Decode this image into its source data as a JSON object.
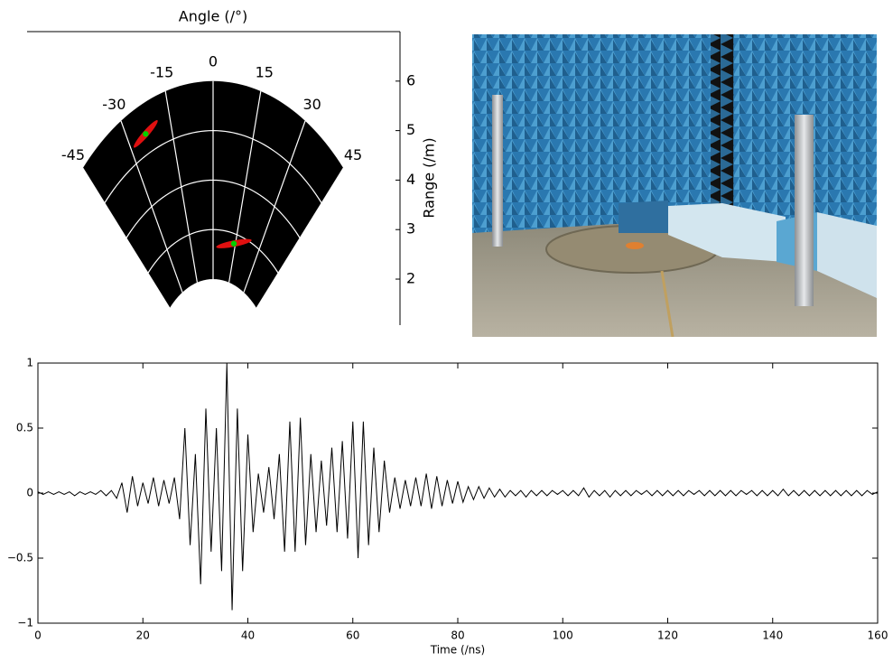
{
  "chart_data": [
    {
      "type": "polar-sector",
      "title": "Angle (/°)",
      "ylabel": "Range (/m)",
      "thetalim": [
        -45,
        45
      ],
      "thetaticks": [
        -45,
        -30,
        -15,
        0,
        15,
        30,
        45
      ],
      "rlim": [
        2,
        6
      ],
      "rgrid": [
        3,
        4,
        5
      ],
      "ylim": [
        1.07,
        7
      ],
      "yticks": [
        2,
        3,
        4,
        5,
        6
      ],
      "theta": [
        -24,
        14
      ],
      "r": [
        5.4,
        2.8
      ],
      "color": "#00d000",
      "glow_color": "#e01010"
    },
    {
      "type": "line",
      "xlabel": "Time (/ns)",
      "color": "#000000",
      "xlim": [
        0,
        160
      ],
      "xticks": [
        0,
        20,
        40,
        60,
        80,
        100,
        120,
        140,
        160
      ],
      "ylim": [
        -1,
        1
      ],
      "yticks": [
        {
          "value": -1,
          "label": "−1"
        },
        {
          "value": -0.5,
          "label": "−0.5"
        },
        0,
        0.5,
        1
      ],
      "x": [
        0,
        1,
        2,
        3,
        4,
        5,
        6,
        7,
        8,
        9,
        10,
        11,
        12,
        13,
        14,
        15,
        16,
        17,
        18,
        19,
        20,
        21,
        22,
        23,
        24,
        25,
        26,
        27,
        28,
        29,
        30,
        31,
        32,
        33,
        34,
        35,
        36,
        37,
        38,
        39,
        40,
        41,
        42,
        43,
        44,
        45,
        46,
        47,
        48,
        49,
        50,
        51,
        52,
        53,
        54,
        55,
        56,
        57,
        58,
        59,
        60,
        61,
        62,
        63,
        64,
        65,
        66,
        67,
        68,
        69,
        70,
        71,
        72,
        73,
        74,
        75,
        76,
        77,
        78,
        79,
        80,
        81,
        82,
        83,
        84,
        85,
        86,
        87,
        88,
        89,
        90,
        91,
        92,
        93,
        94,
        95,
        96,
        97,
        98,
        99,
        100,
        101,
        102,
        103,
        104,
        105,
        106,
        107,
        108,
        109,
        110,
        111,
        112,
        113,
        114,
        115,
        116,
        117,
        118,
        119,
        120,
        121,
        122,
        123,
        124,
        125,
        126,
        127,
        128,
        129,
        130,
        131,
        132,
        133,
        134,
        135,
        136,
        137,
        138,
        139,
        140,
        141,
        142,
        143,
        144,
        145,
        146,
        147,
        148,
        149,
        150,
        151,
        152,
        153,
        154,
        155,
        156,
        157,
        158,
        159,
        160
      ],
      "values": [
        0.01,
        -0.01,
        0.01,
        -0.01,
        0.01,
        -0.01,
        0.01,
        -0.02,
        0.01,
        -0.01,
        0.01,
        -0.01,
        0.02,
        -0.02,
        0.02,
        -0.04,
        0.08,
        -0.15,
        0.13,
        -0.1,
        0.08,
        -0.08,
        0.12,
        -0.1,
        0.1,
        -0.08,
        0.12,
        -0.2,
        0.5,
        -0.4,
        0.3,
        -0.7,
        0.65,
        -0.45,
        0.5,
        -0.6,
        1.0,
        -0.9,
        0.65,
        -0.6,
        0.45,
        -0.3,
        0.15,
        -0.15,
        0.2,
        -0.2,
        0.3,
        -0.45,
        0.55,
        -0.45,
        0.58,
        -0.4,
        0.3,
        -0.3,
        0.25,
        -0.25,
        0.35,
        -0.3,
        0.4,
        -0.35,
        0.55,
        -0.5,
        0.55,
        -0.4,
        0.35,
        -0.3,
        0.25,
        -0.15,
        0.12,
        -0.12,
        0.1,
        -0.1,
        0.12,
        -0.1,
        0.15,
        -0.12,
        0.13,
        -0.1,
        0.1,
        -0.08,
        0.09,
        -0.07,
        0.05,
        -0.05,
        0.05,
        -0.04,
        0.04,
        -0.03,
        0.03,
        -0.03,
        0.02,
        -0.02,
        0.02,
        -0.03,
        0.02,
        -0.02,
        0.02,
        -0.02,
        0.02,
        -0.01,
        0.02,
        -0.02,
        0.02,
        -0.02,
        0.04,
        -0.03,
        0.02,
        -0.02,
        0.02,
        -0.03,
        0.02,
        -0.02,
        0.02,
        -0.02,
        0.02,
        -0.01,
        0.02,
        -0.02,
        0.02,
        -0.02,
        0.02,
        -0.02,
        0.02,
        -0.02,
        0.02,
        -0.01,
        0.02,
        -0.02,
        0.02,
        -0.02,
        0.02,
        -0.02,
        0.02,
        -0.02,
        0.02,
        -0.01,
        0.02,
        -0.02,
        0.02,
        -0.02,
        0.02,
        -0.02,
        0.03,
        -0.02,
        0.02,
        -0.02,
        0.02,
        -0.02,
        0.02,
        -0.02,
        0.02,
        -0.02,
        0.02,
        -0.02,
        0.02,
        -0.02,
        0.02,
        -0.02,
        0.02,
        -0.01,
        0.01
      ]
    }
  ]
}
